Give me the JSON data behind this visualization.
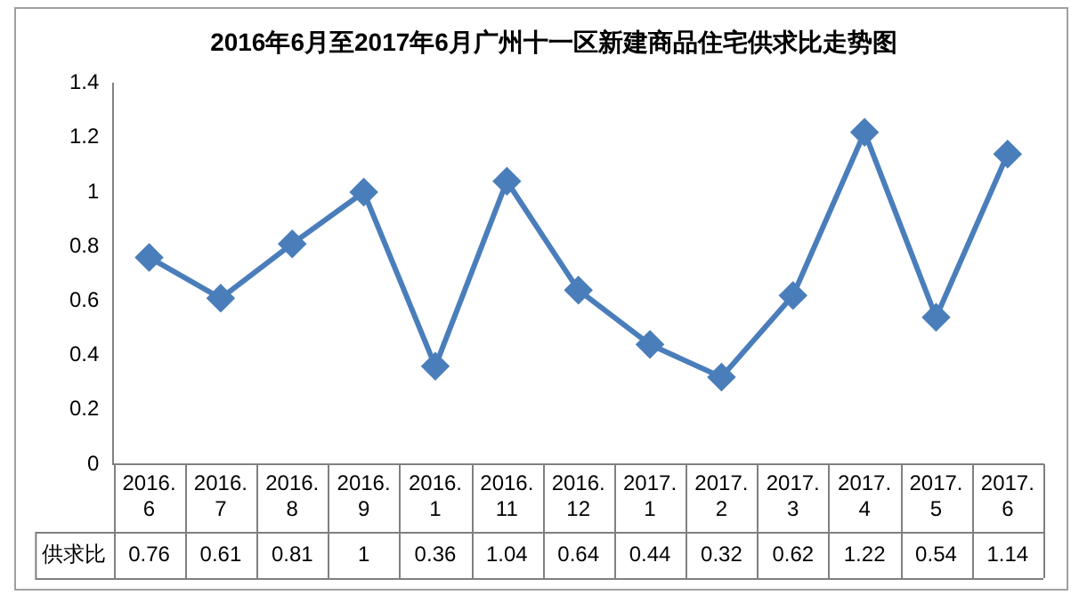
{
  "chart_data": {
    "type": "line",
    "title": "2016年6月至2017年6月广州十一区新建商品住宅供求比走势图",
    "categories": [
      "2016.6",
      "2016.7",
      "2016.8",
      "2016.9",
      "2016.1",
      "2016.11",
      "2016.12",
      "2017.1",
      "2017.2",
      "2017.3",
      "2017.4",
      "2017.5",
      "2017.6"
    ],
    "series": [
      {
        "name": "供求比",
        "color": "#4a7ebb",
        "values": [
          0.76,
          0.61,
          0.81,
          1,
          0.36,
          1.04,
          0.64,
          0.44,
          0.32,
          0.62,
          1.22,
          0.54,
          1.14
        ]
      }
    ],
    "ylim": [
      0,
      1.4
    ],
    "yticks": [
      0,
      0.2,
      0.4,
      0.6,
      0.8,
      1,
      1.2,
      1.4
    ],
    "grid": false,
    "legend": false,
    "marker": "diamond",
    "line_style": "solid",
    "data_labels": true
  }
}
